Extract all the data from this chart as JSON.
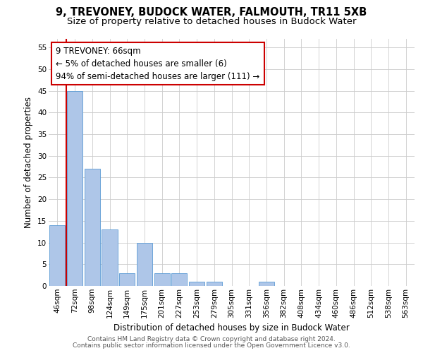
{
  "title1": "9, TREVONEY, BUDOCK WATER, FALMOUTH, TR11 5XB",
  "title2": "Size of property relative to detached houses in Budock Water",
  "xlabel": "Distribution of detached houses by size in Budock Water",
  "ylabel": "Number of detached properties",
  "categories": [
    "46sqm",
    "72sqm",
    "98sqm",
    "124sqm",
    "149sqm",
    "175sqm",
    "201sqm",
    "227sqm",
    "253sqm",
    "279sqm",
    "305sqm",
    "331sqm",
    "356sqm",
    "382sqm",
    "408sqm",
    "434sqm",
    "460sqm",
    "486sqm",
    "512sqm",
    "538sqm",
    "563sqm"
  ],
  "values": [
    14,
    45,
    27,
    13,
    3,
    10,
    3,
    3,
    1,
    1,
    0,
    0,
    1,
    0,
    0,
    0,
    0,
    0,
    0,
    0,
    0
  ],
  "bar_color": "#aec6e8",
  "bar_edge_color": "#5b9bd5",
  "marker_line_color": "#cc0000",
  "annotation_text": "9 TREVONEY: 66sqm\n← 5% of detached houses are smaller (6)\n94% of semi-detached houses are larger (111) →",
  "annotation_box_color": "#ffffff",
  "annotation_box_edge_color": "#cc0000",
  "ylim_max": 57,
  "yticks": [
    0,
    5,
    10,
    15,
    20,
    25,
    30,
    35,
    40,
    45,
    50,
    55
  ],
  "footer1": "Contains HM Land Registry data © Crown copyright and database right 2024.",
  "footer2": "Contains public sector information licensed under the Open Government Licence v3.0.",
  "bg_color": "#ffffff",
  "grid_color": "#cccccc",
  "title1_fontsize": 10.5,
  "title2_fontsize": 9.5,
  "axis_label_fontsize": 8.5,
  "tick_fontsize": 7.5,
  "annotation_fontsize": 8.5,
  "footer_fontsize": 6.5
}
